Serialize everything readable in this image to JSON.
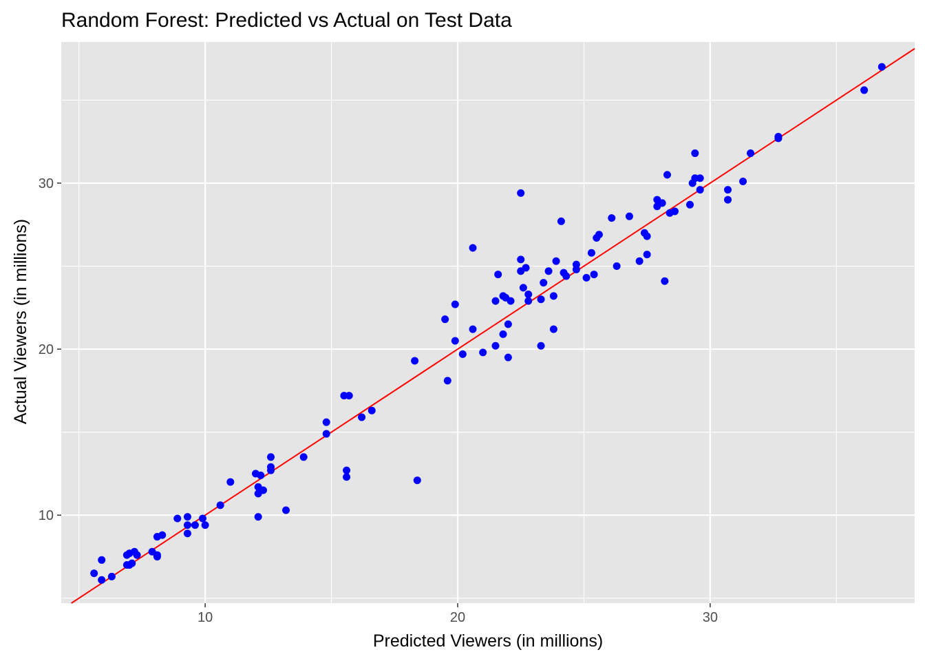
{
  "chart_data": {
    "type": "scatter",
    "title": "Random Forest: Predicted vs Actual on Test Data",
    "xlabel": "Predicted Viewers (in millions)",
    "ylabel": "Actual Viewers (in millions)",
    "xlim": [
      4.3,
      38.1
    ],
    "ylim": [
      4.7,
      38.5
    ],
    "x_ticks": [
      10,
      20,
      30
    ],
    "y_ticks": [
      10,
      20,
      30
    ],
    "grid": true,
    "point_color": "#0000ff",
    "line_color": "#ff0000",
    "panel_color": "#e5e5e5",
    "reference_line": {
      "type": "identity",
      "slope": 1,
      "intercept": 0
    },
    "points": [
      [
        5.6,
        6.5
      ],
      [
        5.9,
        6.1
      ],
      [
        5.9,
        7.3
      ],
      [
        6.3,
        6.3
      ],
      [
        6.9,
        7.6
      ],
      [
        6.9,
        7.0
      ],
      [
        7.0,
        7.7
      ],
      [
        7.0,
        7.0
      ],
      [
        7.1,
        7.1
      ],
      [
        7.2,
        7.8
      ],
      [
        7.3,
        7.6
      ],
      [
        7.9,
        7.8
      ],
      [
        8.1,
        7.6
      ],
      [
        8.1,
        7.5
      ],
      [
        8.1,
        8.7
      ],
      [
        8.3,
        8.8
      ],
      [
        8.9,
        9.8
      ],
      [
        9.3,
        9.9
      ],
      [
        9.3,
        9.4
      ],
      [
        9.3,
        8.9
      ],
      [
        9.6,
        9.4
      ],
      [
        9.9,
        9.8
      ],
      [
        10.0,
        9.4
      ],
      [
        10.6,
        10.6
      ],
      [
        11.0,
        12.0
      ],
      [
        12.0,
        12.5
      ],
      [
        12.1,
        11.7
      ],
      [
        12.1,
        11.3
      ],
      [
        12.1,
        9.9
      ],
      [
        12.2,
        12.4
      ],
      [
        12.3,
        11.5
      ],
      [
        12.6,
        13.5
      ],
      [
        12.6,
        12.9
      ],
      [
        12.6,
        12.7
      ],
      [
        13.2,
        10.3
      ],
      [
        13.9,
        13.5
      ],
      [
        14.8,
        15.6
      ],
      [
        14.8,
        14.9
      ],
      [
        15.5,
        17.2
      ],
      [
        15.6,
        12.7
      ],
      [
        15.6,
        12.3
      ],
      [
        15.7,
        17.2
      ],
      [
        16.2,
        15.9
      ],
      [
        16.6,
        16.3
      ],
      [
        18.3,
        19.3
      ],
      [
        18.4,
        12.1
      ],
      [
        19.5,
        21.8
      ],
      [
        19.6,
        18.1
      ],
      [
        19.9,
        22.7
      ],
      [
        19.9,
        20.5
      ],
      [
        20.2,
        19.7
      ],
      [
        20.6,
        26.1
      ],
      [
        20.6,
        21.2
      ],
      [
        21.0,
        19.8
      ],
      [
        21.5,
        22.9
      ],
      [
        21.5,
        20.2
      ],
      [
        21.6,
        24.5
      ],
      [
        21.8,
        23.2
      ],
      [
        21.8,
        20.9
      ],
      [
        21.9,
        23.1
      ],
      [
        22.0,
        21.5
      ],
      [
        22.0,
        19.5
      ],
      [
        22.1,
        22.9
      ],
      [
        22.5,
        29.4
      ],
      [
        22.5,
        25.4
      ],
      [
        22.5,
        24.7
      ],
      [
        22.6,
        23.7
      ],
      [
        22.7,
        24.9
      ],
      [
        22.8,
        23.3
      ],
      [
        22.8,
        22.9
      ],
      [
        23.3,
        23.0
      ],
      [
        23.3,
        20.2
      ],
      [
        23.4,
        24.0
      ],
      [
        23.6,
        24.7
      ],
      [
        23.8,
        23.2
      ],
      [
        23.8,
        21.2
      ],
      [
        23.9,
        25.3
      ],
      [
        24.1,
        27.7
      ],
      [
        24.2,
        24.6
      ],
      [
        24.3,
        24.4
      ],
      [
        24.7,
        24.8
      ],
      [
        24.7,
        25.1
      ],
      [
        25.1,
        24.3
      ],
      [
        25.3,
        25.8
      ],
      [
        25.4,
        24.5
      ],
      [
        25.5,
        26.7
      ],
      [
        25.6,
        26.9
      ],
      [
        26.1,
        27.9
      ],
      [
        26.3,
        25.0
      ],
      [
        26.8,
        28.0
      ],
      [
        27.2,
        25.3
      ],
      [
        27.4,
        27.0
      ],
      [
        27.5,
        26.8
      ],
      [
        27.5,
        25.7
      ],
      [
        27.9,
        29.0
      ],
      [
        27.9,
        28.6
      ],
      [
        28.1,
        28.8
      ],
      [
        28.2,
        24.1
      ],
      [
        28.3,
        30.5
      ],
      [
        28.4,
        28.2
      ],
      [
        28.6,
        28.3
      ],
      [
        29.2,
        28.7
      ],
      [
        29.3,
        30.0
      ],
      [
        29.4,
        31.8
      ],
      [
        29.4,
        30.3
      ],
      [
        29.6,
        30.3
      ],
      [
        29.6,
        29.6
      ],
      [
        30.7,
        29.6
      ],
      [
        30.7,
        29.0
      ],
      [
        31.3,
        30.1
      ],
      [
        31.6,
        31.8
      ],
      [
        32.7,
        32.8
      ],
      [
        32.7,
        32.7
      ],
      [
        36.1,
        35.6
      ],
      [
        36.8,
        37.0
      ]
    ]
  }
}
